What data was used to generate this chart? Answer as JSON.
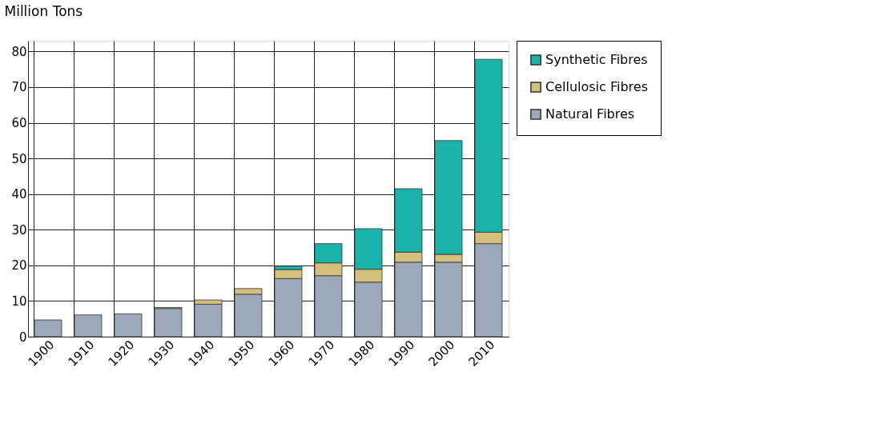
{
  "chart_data": {
    "type": "bar",
    "ylabel": "Million Tons",
    "stacked": true,
    "categories": [
      "1900",
      "1910",
      "1920",
      "1930",
      "1940",
      "1950",
      "1960",
      "1970",
      "1980",
      "1990",
      "2000",
      "2010"
    ],
    "series": [
      {
        "name": "Natural Fibres",
        "color": "#9ea8bb",
        "values": [
          4.7,
          6.1,
          6.4,
          7.9,
          9.1,
          11.9,
          16.3,
          17.1,
          15.3,
          20.9,
          20.9,
          26.1
        ]
      },
      {
        "name": "Cellulosic Fibres",
        "color": "#d4c07a",
        "values": [
          null,
          null,
          null,
          0.3,
          1.2,
          1.6,
          2.5,
          3.6,
          3.6,
          2.8,
          2.2,
          3.2
        ]
      },
      {
        "name": "Synthetic Fibres",
        "color": "#1bb2aa",
        "values": [
          null,
          null,
          null,
          null,
          null,
          null,
          1.0,
          5.4,
          11.4,
          17.8,
          31.9,
          48.5
        ]
      }
    ],
    "ylim": [
      0,
      83
    ],
    "yticks": [
      0,
      10,
      20,
      30,
      40,
      50,
      60,
      70,
      80
    ],
    "grid": true,
    "legend": "right"
  }
}
